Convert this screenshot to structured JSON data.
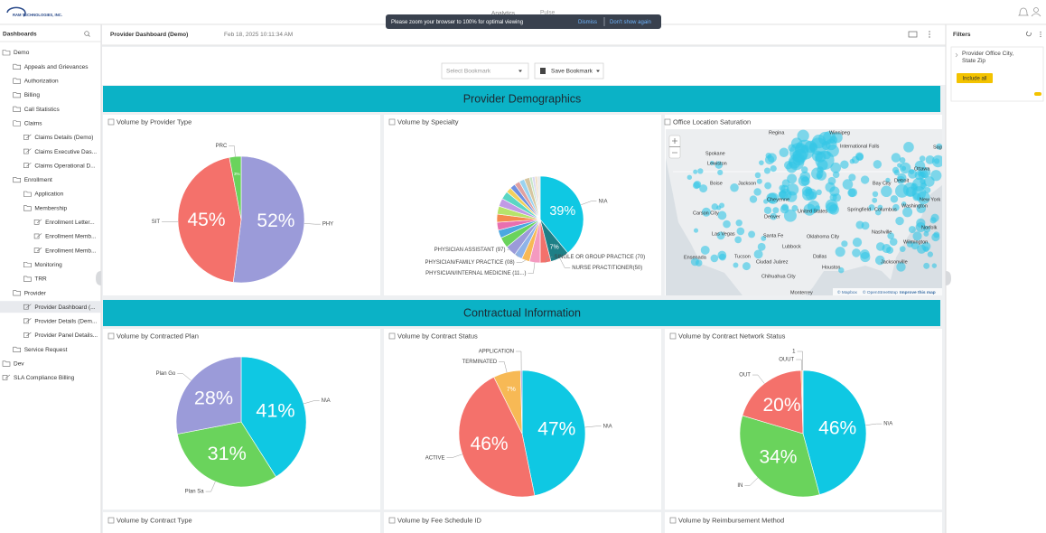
{
  "header": {
    "logo": "RAM TECHNOLOGIES, INC.",
    "tabs": [
      "Analytics",
      "Pulse"
    ],
    "banner": {
      "message": "Please zoom your browser to 100% for optimal viewing",
      "dismiss": "Dismiss",
      "dont_show": "Don't show again"
    }
  },
  "sidebar": {
    "title": "Dashboards",
    "tree": [
      {
        "label": "Demo",
        "type": "folder",
        "children": [
          {
            "label": "Appeals and Grievances",
            "type": "folder"
          },
          {
            "label": "Authorization",
            "type": "folder"
          },
          {
            "label": "Billing",
            "type": "folder"
          },
          {
            "label": "Call Statistics",
            "type": "folder"
          },
          {
            "label": "Claims",
            "type": "folder",
            "children": [
              {
                "label": "Claims Details (Demo)",
                "type": "dashboard"
              },
              {
                "label": "Claims Executive Das...",
                "type": "dashboard"
              },
              {
                "label": "Claims Operational D...",
                "type": "dashboard"
              }
            ]
          },
          {
            "label": "Enrollment",
            "type": "folder",
            "children": [
              {
                "label": "Application",
                "type": "folder"
              },
              {
                "label": "Membership",
                "type": "folder",
                "children": [
                  {
                    "label": "Enrollment Letter...",
                    "type": "dashboard"
                  },
                  {
                    "label": "Enrollment Memb...",
                    "type": "dashboard"
                  },
                  {
                    "label": "Enrollment Memb...",
                    "type": "dashboard"
                  }
                ]
              },
              {
                "label": "Monitoring",
                "type": "folder"
              },
              {
                "label": "TRR",
                "type": "folder"
              }
            ]
          },
          {
            "label": "Provider",
            "type": "folder",
            "children": [
              {
                "label": "Provider Dashboard (...",
                "type": "dashboard",
                "selected": true
              },
              {
                "label": "Provider Details (Dem...",
                "type": "dashboard"
              },
              {
                "label": "Provider Panel Details...",
                "type": "dashboard"
              }
            ]
          },
          {
            "label": "Service Request",
            "type": "folder"
          }
        ]
      },
      {
        "label": "Dev",
        "type": "folder"
      },
      {
        "label": "SLA Compliance Billing",
        "type": "dashboard"
      }
    ]
  },
  "toolbar": {
    "title": "Provider Dashboard (Demo)",
    "timestamp": "Feb 18, 2025 10:11:34 AM",
    "bookmark_placeholder": "Select Bookmark",
    "save_bookmark": "Save Bookmark"
  },
  "sections": [
    "Provider Demographics",
    "Contractual Information"
  ],
  "chart_data": [
    {
      "type": "pie",
      "title": "Volume by Provider Type",
      "categories": [
        "PHY",
        "SIT",
        "PRC"
      ],
      "values": [
        52,
        45,
        3
      ],
      "value_labels": [
        "52%",
        "45%",
        "3%"
      ],
      "colors": [
        "#9b9bd9",
        "#f4716b",
        "#6ad35c"
      ]
    },
    {
      "type": "pie",
      "title": "Volume by Specialty",
      "categories": [
        "N\\A",
        "NURSE PRACTITIONER(50)",
        "SINGLE OR GROUP PRACTICE (70)",
        "PHYSICIAN/INTERNAL MEDICINE (11...)",
        "PHYSICIAN/FAMILY PRACTICE (08)",
        "PHYSICIAN ASSISTANT (97)",
        null,
        null,
        null,
        null,
        null,
        null,
        null,
        null,
        null,
        null,
        null,
        null,
        null,
        null,
        null,
        null,
        null
      ],
      "values": [
        39,
        7,
        4,
        4,
        3,
        3,
        4,
        4,
        3,
        3,
        3,
        3,
        3,
        3,
        2,
        2,
        2,
        2,
        2,
        1,
        1,
        1,
        1
      ],
      "value_labels": [
        "39%",
        "7%",
        null,
        null,
        null,
        null,
        null,
        null,
        null,
        null,
        null,
        null,
        null,
        null,
        null,
        null,
        null,
        null,
        null,
        null,
        null,
        null,
        null
      ],
      "colors": [
        "#0fc8e3",
        "#1e7f86",
        "#f4716b",
        "#f49ac0",
        "#f7b955",
        "#8fb3e8",
        "#9b9bd9",
        "#6ad35c",
        "#4aa8e0",
        "#e86fb0",
        "#f58a4f",
        "#b6e36b",
        "#c19ae6",
        "#5bd6c4",
        "#f2d15c",
        "#6f8fe0",
        "#e0a0a0",
        "#9ad3f0",
        "#d6c6a0",
        "#c8e6c9",
        "#d8d8f0",
        "#f0e0c8",
        "#e8e8e8"
      ]
    },
    {
      "type": "pie",
      "title": "Volume by Contracted Plan",
      "categories": [
        "N\\A",
        "Plan Sa",
        "Plan Go"
      ],
      "values": [
        41,
        31,
        28
      ],
      "value_labels": [
        "41%",
        "31%",
        "28%"
      ],
      "colors": [
        "#0fc8e3",
        "#6ad35c",
        "#9b9bd9"
      ]
    },
    {
      "type": "pie",
      "title": "Volume by Contract Status",
      "categories": [
        "N\\A",
        "ACTIVE",
        "TERMINATED",
        "APPLICATION"
      ],
      "values": [
        47,
        46,
        7,
        0.4
      ],
      "value_labels": [
        "47%",
        "46%",
        "7%",
        null
      ],
      "colors": [
        "#0fc8e3",
        "#f4716b",
        "#f7b955",
        "#9b9bd9"
      ]
    },
    {
      "type": "pie",
      "title": "Volume by Contract Network Status",
      "categories": [
        "N\\A",
        "IN",
        "OUT",
        "OUUT",
        "1"
      ],
      "values": [
        46,
        34,
        20,
        0.3,
        0.2
      ],
      "value_labels": [
        "46%",
        "34%",
        "20%",
        null,
        null
      ],
      "colors": [
        "#0fc8e3",
        "#6ad35c",
        "#f4716b",
        "#f7b955",
        "#9b9bd9"
      ]
    }
  ],
  "map": {
    "title": "Office Location Saturation",
    "cities": [
      "Regina",
      "Winnipeg",
      "International Falls",
      "Saguenay",
      "Ottawa",
      "Spokane",
      "Lewiston",
      "Boise",
      "Jackson",
      "Bay City",
      "Detroit",
      "New York",
      "Cheyenne",
      "Carson City",
      "Denver",
      "United States",
      "Springfield",
      "Columbus",
      "Washington",
      "Norfolk",
      "Las Vegas",
      "Santa Fe",
      "Oklahoma City",
      "Nashville",
      "Wilmington",
      "Lubbock",
      "Dallas",
      "Ensenada",
      "Tucson",
      "Ciudad Juárez",
      "Houston",
      "Chihuahua City",
      "Monterrey",
      "Jacksonville"
    ],
    "attribution": [
      "© Mapbox",
      "© OpenStreetMap",
      "Improve this map"
    ]
  },
  "bottom_panels": [
    "Volume by Contract Type",
    "Volume by Fee Schedule ID",
    "Volume by Reimbursement Method"
  ],
  "filters": {
    "title": "Filters",
    "field": "Provider Office City, State Zip",
    "include_all": "Include all"
  }
}
